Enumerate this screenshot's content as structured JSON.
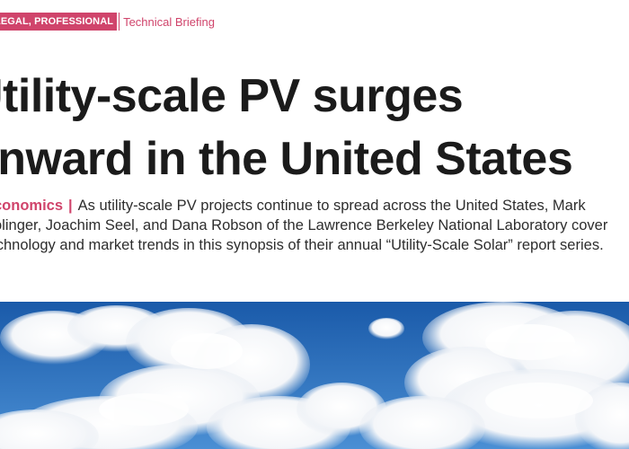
{
  "header": {
    "category": "LEGAL, PROFESSIONAL",
    "section": "Technical Briefing"
  },
  "headline": {
    "line1": "Utility-scale PV surges",
    "line2": "onward in the United States"
  },
  "intro": {
    "kicker": "Economics",
    "separator": "|",
    "line1": "As utility-scale PV projects continue to spread across the United States, Mark",
    "line2": "Bolinger, Joachim Seel, and Dana Robson of the Lawrence Berkeley National Laboratory cover",
    "line3": "technology and market trends in this synopsis of their annual “Utility-Scale Solar” report series."
  },
  "image": {
    "subject": "blue sky with white clouds",
    "colors": {
      "sky_top": "#1d5fb0",
      "sky_bottom": "#3f86cf",
      "cloud": "#ffffff",
      "accent": "#d0446b"
    }
  }
}
